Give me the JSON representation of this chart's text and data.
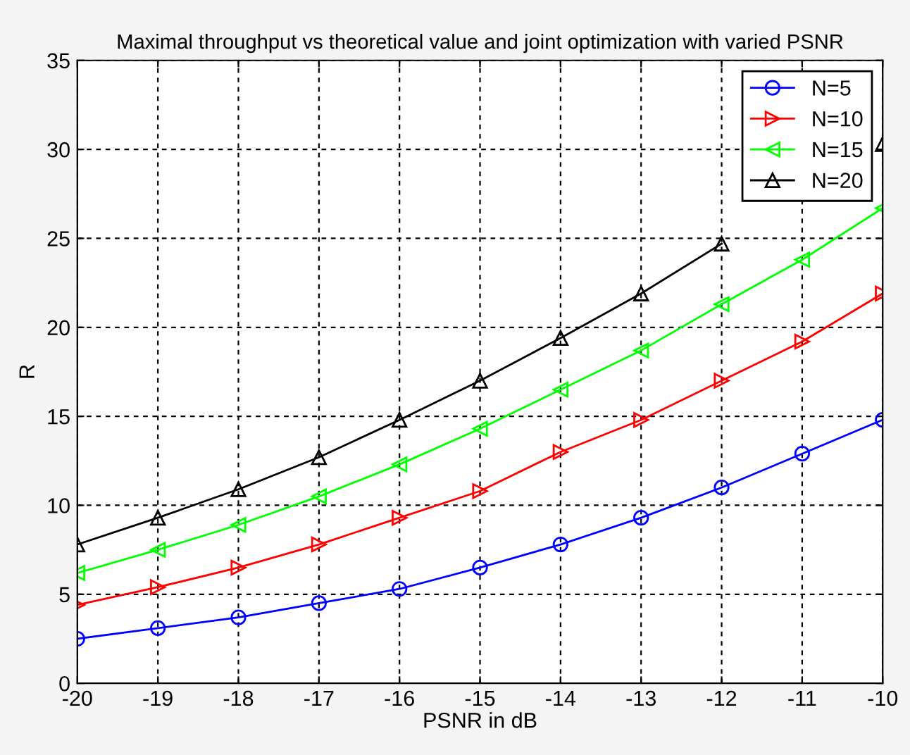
{
  "chart_data": {
    "type": "line",
    "title": "Maximal throughput vs theoretical value and joint optimization with varied PSNR",
    "xlabel": "PSNR in dB",
    "ylabel": "R",
    "x": [
      -20,
      -19,
      -18,
      -17,
      -16,
      -15,
      -14,
      -13,
      -12,
      -11,
      -10
    ],
    "series": [
      {
        "name": "N=5",
        "color": "#0000ff",
        "marker": "circle",
        "values": [
          2.5,
          3.1,
          3.7,
          4.5,
          5.3,
          6.5,
          7.8,
          9.3,
          11.0,
          12.9,
          14.8
        ]
      },
      {
        "name": "N=10",
        "color": "#ff0000",
        "marker": "triangle-right",
        "values": [
          4.4,
          5.4,
          6.5,
          7.8,
          9.3,
          10.8,
          13.0,
          14.8,
          17.0,
          19.2,
          21.9
        ]
      },
      {
        "name": "N=15",
        "color": "#00ff00",
        "marker": "triangle-left",
        "values": [
          6.2,
          7.5,
          8.9,
          10.5,
          12.3,
          14.3,
          16.5,
          18.7,
          21.3,
          23.8,
          26.7
        ]
      },
      {
        "name": "N=20",
        "color": "#000000",
        "marker": "triangle",
        "values": [
          7.8,
          9.3,
          10.9,
          12.7,
          14.8,
          17.0,
          19.4,
          21.9,
          24.7,
          null,
          30.3
        ]
      }
    ],
    "xlim": [
      -20,
      -10
    ],
    "xticks": [
      -20,
      -19,
      -18,
      -17,
      -16,
      -15,
      -14,
      -13,
      -12,
      -11,
      -10
    ],
    "ylim": [
      0,
      35
    ],
    "yticks": [
      0,
      5,
      10,
      15,
      20,
      25,
      30,
      35
    ],
    "grid": true,
    "legend": "top right",
    "line_style": "solid"
  }
}
